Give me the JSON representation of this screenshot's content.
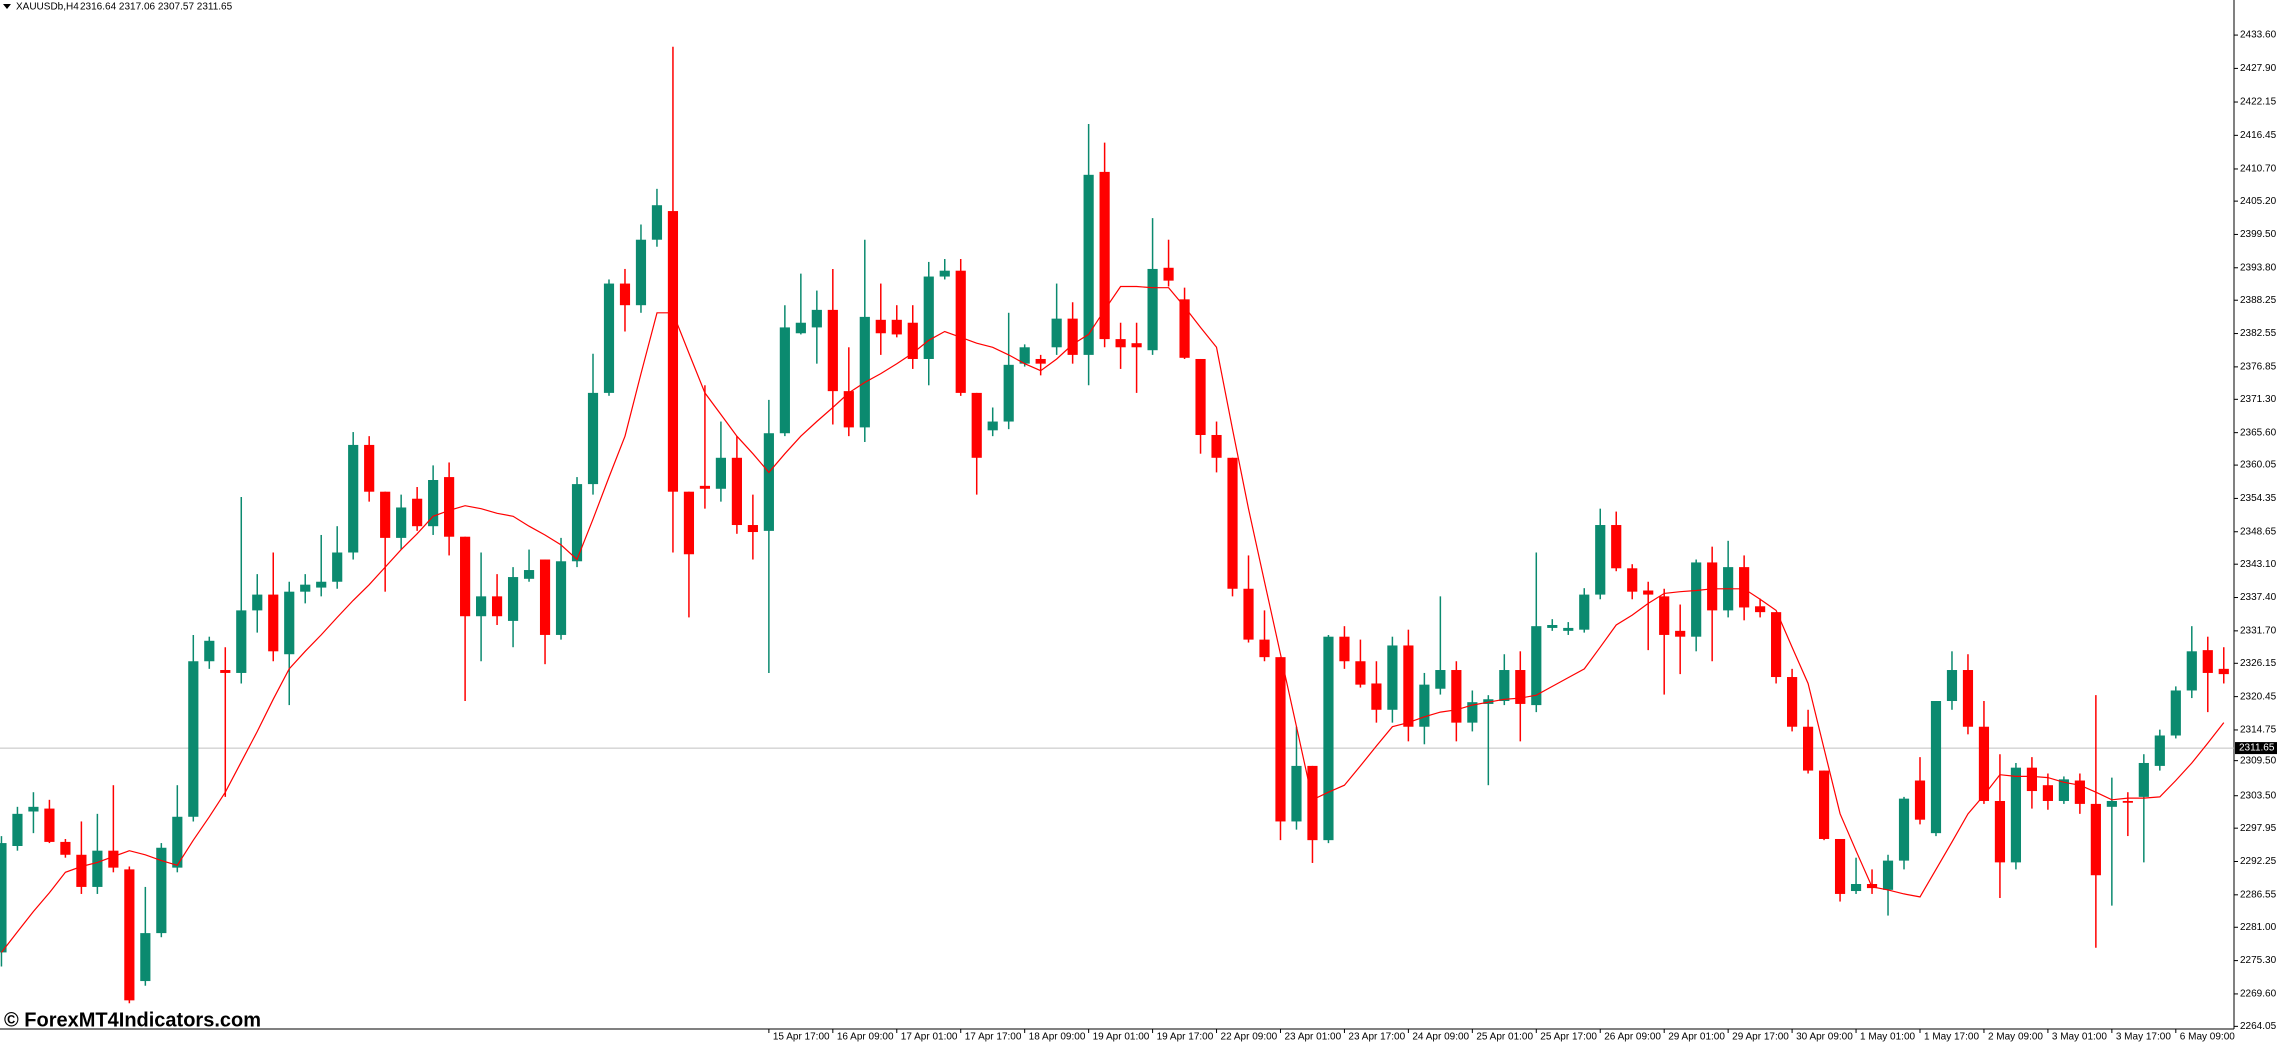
{
  "chart_data": {
    "type": "candlestick",
    "title": "XAUUSDb,H4",
    "subtitle": "2316.64 2317.06 2307.57 2311.65",
    "up_color": "#0b8a6f",
    "down_color": "#ff0000",
    "categories": [
      null,
      null,
      null,
      null,
      null,
      null,
      null,
      null,
      null,
      null,
      null,
      null,
      null,
      null,
      null,
      null,
      null,
      null,
      null,
      null,
      null,
      null,
      null,
      null,
      null,
      null,
      null,
      null,
      null,
      null,
      null,
      null,
      null,
      null,
      null,
      null,
      null,
      null,
      null,
      null,
      null,
      null,
      null,
      null,
      null,
      null,
      null,
      null,
      "15 Apr 17:00",
      null,
      null,
      null,
      "16 Apr 09:00",
      null,
      null,
      null,
      "17 Apr 01:00",
      null,
      null,
      null,
      "17 Apr 17:00",
      null,
      null,
      null,
      "18 Apr 09:00",
      null,
      null,
      null,
      "19 Apr 01:00",
      null,
      null,
      null,
      "19 Apr 17:00",
      null,
      null,
      null,
      "22 Apr 09:00",
      null,
      null,
      null,
      "23 Apr 01:00",
      null,
      null,
      null,
      "23 Apr 17:00",
      null,
      null,
      null,
      "24 Apr 09:00",
      null,
      null,
      null,
      "25 Apr 01:00",
      null,
      null,
      null,
      "25 Apr 17:00",
      null,
      null,
      null,
      "26 Apr 09:00",
      null,
      null,
      null,
      "29 Apr 01:00",
      null,
      null,
      null,
      "29 Apr 17:00",
      null,
      null,
      null,
      "30 Apr 09:00",
      null,
      null,
      null,
      "1 May 01:00",
      null,
      null,
      null,
      "1 May 17:00",
      null,
      null,
      null,
      "2 May 09:00",
      null,
      null,
      null,
      "3 May 01:00",
      null,
      null,
      null,
      "3 May 17:00",
      null,
      null,
      null,
      "6 May 09:00",
      null,
      null,
      null
    ],
    "open": [
      2276.7,
      2294.9,
      2300.8,
      2301.3,
      2295.6,
      2293.4,
      2287.9,
      2294.1,
      2290.9,
      2271.8,
      2280.0,
      2291.2,
      2299.9,
      2326.5,
      2325.0,
      2324.5,
      2335.2,
      2337.9,
      2327.7,
      2338.4,
      2339.1,
      2340.1,
      2345.1,
      2363.5,
      2355.5,
      2347.6,
      2354.3,
      2349.6,
      2358.0,
      2347.8,
      2334.2,
      2337.6,
      2333.4,
      2340.6,
      2343.9,
      2331.0,
      2343.6,
      2356.8,
      2372.4,
      2391.1,
      2387.4,
      2398.6,
      2403.5,
      2355.5,
      2356.5,
      2356.0,
      2361.3,
      2349.8,
      2348.8,
      2365.5,
      2382.6,
      2383.6,
      2386.6,
      2372.7,
      2366.5,
      2384.9,
      2384.9,
      2384.4,
      2378.2,
      2392.3,
      2393.3,
      2372.4,
      2366.0,
      2367.5,
      2377.4,
      2378.2,
      2380.2,
      2385.1,
      2378.9,
      2410.2,
      2381.6,
      2380.9,
      2379.7,
      2393.8,
      2388.4,
      2378.2,
      2365.2,
      2361.3,
      2338.9,
      2330.2,
      2327.2,
      2299.1,
      2308.6,
      2295.9,
      2330.7,
      2326.5,
      2322.7,
      2318.2,
      2329.2,
      2315.3,
      2321.8,
      2325.0,
      2316.0,
      2319.2,
      2319.7,
      2325.0,
      2319.0,
      2332.2,
      2331.7,
      2331.9,
      2337.9,
      2349.8,
      2342.4,
      2338.6,
      2337.6,
      2331.7,
      2330.7,
      2343.4,
      2335.2,
      2342.6,
      2335.9,
      2334.9,
      2323.8,
      2315.3,
      2307.8,
      2296.1,
      2287.2,
      2288.4,
      2287.4,
      2292.4,
      2306.1,
      2297.1,
      2319.7,
      2325.0,
      2315.3,
      2302.6,
      2292.1,
      2308.3,
      2305.3,
      2302.6,
      2306.1,
      2302.1,
      2301.6,
      2302.6,
      2303.3,
      2308.6,
      2313.8,
      2321.5,
      2328.4,
      2325.2
    ],
    "high": [
      2296.6,
      2301.6,
      2304.1,
      2302.8,
      2296.1,
      2299.1,
      2300.4,
      2305.3,
      2291.4,
      2287.9,
      2295.4,
      2305.3,
      2331.0,
      2330.7,
      2328.9,
      2354.6,
      2341.4,
      2345.1,
      2340.1,
      2341.4,
      2348.1,
      2349.6,
      2365.7,
      2365.0,
      2355.5,
      2355.0,
      2356.3,
      2360.0,
      2360.5,
      2347.8,
      2345.1,
      2341.4,
      2342.6,
      2345.6,
      2343.9,
      2347.6,
      2358.0,
      2379.1,
      2391.8,
      2393.6,
      2401.2,
      2407.3,
      2431.6,
      2355.5,
      2373.7,
      2367.5,
      2365.0,
      2355.0,
      2371.2,
      2387.4,
      2392.8,
      2389.9,
      2393.6,
      2380.2,
      2398.6,
      2391.1,
      2387.4,
      2387.4,
      2394.8,
      2395.3,
      2395.3,
      2372.4,
      2369.9,
      2386.1,
      2380.7,
      2378.9,
      2391.1,
      2387.9,
      2418.4,
      2415.2,
      2384.4,
      2384.4,
      2402.3,
      2398.6,
      2390.4,
      2378.2,
      2367.5,
      2361.3,
      2344.6,
      2335.2,
      2327.2,
      2315.3,
      2308.6,
      2331.0,
      2332.5,
      2330.2,
      2326.5,
      2330.7,
      2331.9,
      2324.5,
      2337.6,
      2326.5,
      2321.5,
      2320.7,
      2327.7,
      2328.2,
      2345.1,
      2333.7,
      2333.2,
      2339.0,
      2352.6,
      2352.1,
      2343.1,
      2340.1,
      2338.9,
      2336.2,
      2343.9,
      2346.1,
      2347.1,
      2344.6,
      2337.2,
      2334.9,
      2325.2,
      2318.2,
      2307.8,
      2296.1,
      2292.9,
      2290.9,
      2293.4,
      2303.3,
      2310.1,
      2319.7,
      2328.2,
      2327.7,
      2319.7,
      2310.6,
      2309.1,
      2310.1,
      2307.3,
      2306.8,
      2307.3,
      2320.7,
      2306.6,
      2304.1,
      2310.6,
      2314.8,
      2322.2,
      2332.5,
      2330.7,
      2328.9
    ],
    "low": [
      2274.3,
      2294.1,
      2297.1,
      2295.4,
      2292.9,
      2286.7,
      2286.7,
      2290.4,
      2268.0,
      2271.0,
      2279.3,
      2290.4,
      2299.1,
      2325.2,
      2303.3,
      2322.7,
      2331.4,
      2326.5,
      2319.0,
      2336.4,
      2337.6,
      2338.9,
      2343.9,
      2353.8,
      2338.4,
      2345.6,
      2348.8,
      2348.1,
      2344.6,
      2319.7,
      2326.5,
      2332.7,
      2328.9,
      2340.1,
      2326.0,
      2330.2,
      2342.6,
      2355.0,
      2371.9,
      2382.9,
      2386.1,
      2397.4,
      2345.1,
      2334.0,
      2352.6,
      2353.8,
      2348.3,
      2343.9,
      2324.5,
      2365.0,
      2382.4,
      2377.4,
      2367.0,
      2365.0,
      2364.0,
      2378.9,
      2381.9,
      2376.5,
      2373.7,
      2391.8,
      2371.9,
      2355.0,
      2365.0,
      2366.2,
      2376.9,
      2375.4,
      2378.9,
      2377.4,
      2373.7,
      2380.2,
      2376.5,
      2372.4,
      2378.9,
      2390.6,
      2378.2,
      2362.0,
      2358.8,
      2337.6,
      2329.7,
      2326.5,
      2295.9,
      2297.7,
      2292.0,
      2295.4,
      2325.2,
      2322.0,
      2316.0,
      2316.0,
      2312.8,
      2312.3,
      2320.8,
      2312.8,
      2314.5,
      2305.3,
      2319.0,
      2312.8,
      2317.8,
      2331.7,
      2331.0,
      2331.4,
      2337.1,
      2341.9,
      2337.1,
      2328.4,
      2320.8,
      2324.3,
      2328.2,
      2326.5,
      2334.0,
      2333.5,
      2334.0,
      2322.7,
      2314.5,
      2307.3,
      2295.9,
      2285.4,
      2286.7,
      2286.7,
      2283.0,
      2290.9,
      2298.6,
      2296.6,
      2318.2,
      2314.0,
      2302.1,
      2286.0,
      2290.9,
      2301.3,
      2301.1,
      2302.1,
      2300.4,
      2277.5,
      2284.7,
      2296.6,
      2292.1,
      2307.8,
      2313.3,
      2320.2,
      2317.8,
      2322.7
    ],
    "close": [
      2295.4,
      2300.4,
      2301.6,
      2295.6,
      2293.4,
      2287.9,
      2294.1,
      2291.2,
      2268.5,
      2280.0,
      2294.6,
      2299.9,
      2326.5,
      2330.0,
      2324.5,
      2335.2,
      2337.9,
      2328.2,
      2338.4,
      2339.6,
      2340.1,
      2345.1,
      2363.5,
      2355.5,
      2347.6,
      2352.8,
      2349.6,
      2357.5,
      2347.8,
      2334.2,
      2337.6,
      2334.2,
      2340.9,
      2342.1,
      2331.0,
      2343.6,
      2356.8,
      2372.4,
      2391.1,
      2387.4,
      2398.6,
      2404.5,
      2355.5,
      2344.8,
      2356.0,
      2361.3,
      2349.8,
      2348.6,
      2365.5,
      2383.6,
      2384.4,
      2386.6,
      2372.7,
      2366.5,
      2385.4,
      2382.6,
      2382.4,
      2378.2,
      2392.3,
      2393.3,
      2372.4,
      2361.3,
      2367.5,
      2377.2,
      2380.2,
      2377.4,
      2385.1,
      2378.9,
      2409.7,
      2381.6,
      2380.2,
      2380.2,
      2393.6,
      2391.6,
      2378.4,
      2365.2,
      2361.3,
      2338.9,
      2330.2,
      2327.2,
      2299.1,
      2308.6,
      2295.9,
      2330.7,
      2326.5,
      2322.5,
      2318.2,
      2329.2,
      2315.3,
      2322.5,
      2325.0,
      2316.0,
      2319.5,
      2320.0,
      2325.0,
      2319.2,
      2332.5,
      2332.7,
      2332.2,
      2337.9,
      2349.8,
      2342.4,
      2338.4,
      2337.9,
      2331.0,
      2330.7,
      2343.4,
      2335.2,
      2342.6,
      2335.7,
      2334.9,
      2323.8,
      2315.3,
      2307.8,
      2296.1,
      2286.7,
      2288.4,
      2287.7,
      2292.4,
      2303.0,
      2299.4,
      2319.7,
      2325.0,
      2315.3,
      2302.6,
      2292.1,
      2308.3,
      2304.3,
      2302.6,
      2306.3,
      2302.1,
      2289.9,
      2302.6,
      2302.3,
      2309.1,
      2313.8,
      2321.5,
      2328.2,
      2324.5,
      2324.3
    ],
    "ma": {
      "color": "#ff0000",
      "values": [
        2276.7,
        2280.2,
        2283.7,
        2286.9,
        2290.4,
        2291.4,
        2292.1,
        2293.1,
        2294.1,
        2293.4,
        2292.4,
        2291.6,
        2295.9,
        2299.9,
        2304.1,
        2309.3,
        2314.5,
        2320.0,
        2325.2,
        2328.2,
        2331.0,
        2334.0,
        2336.9,
        2339.6,
        2342.6,
        2345.6,
        2348.3,
        2351.3,
        2352.3,
        2353.1,
        2352.6,
        2351.8,
        2351.3,
        2349.6,
        2348.1,
        2346.4,
        2343.9,
        2350.8,
        2358.0,
        2365.0,
        2375.7,
        2386.1,
        2386.1,
        2379.2,
        2372.4,
        2368.7,
        2365.0,
        2362.0,
        2358.8,
        2362.0,
        2365.0,
        2367.5,
        2369.9,
        2372.4,
        2374.2,
        2375.7,
        2377.4,
        2379.2,
        2381.4,
        2382.9,
        2381.9,
        2380.9,
        2380.2,
        2378.9,
        2377.4,
        2376.2,
        2378.2,
        2380.7,
        2382.4,
        2386.6,
        2390.6,
        2390.6,
        2390.4,
        2390.4,
        2387.1,
        2383.6,
        2380.2,
        2366.2,
        2352.6,
        2340.1,
        2327.7,
        2315.3,
        2302.8,
        2304.1,
        2305.3,
        2308.6,
        2312.0,
        2315.3,
        2316.0,
        2317.0,
        2317.8,
        2318.2,
        2319.0,
        2319.5,
        2320.0,
        2320.2,
        2320.7,
        2322.2,
        2323.7,
        2325.2,
        2328.9,
        2332.7,
        2334.4,
        2336.4,
        2338.1,
        2338.4,
        2338.6,
        2338.9,
        2338.9,
        2338.9,
        2337.1,
        2335.2,
        2328.9,
        2322.7,
        2311.5,
        2300.4,
        2294.1,
        2287.9,
        2287.4,
        2286.7,
        2286.2,
        2290.9,
        2295.6,
        2300.4,
        2303.6,
        2307.1,
        2306.8,
        2306.8,
        2306.6,
        2305.8,
        2305.3,
        2304.1,
        2302.8,
        2303.1,
        2303.1,
        2303.3,
        2306.1,
        2309.1,
        2312.5,
        2316.0
      ]
    },
    "price_line": 2311.65,
    "price_line_color": "#c0c0c0",
    "ylim": [
      2263.6,
      2439.6
    ],
    "yticks": [
      {
        "value": 2433.6,
        "label": "2433.60"
      },
      {
        "value": 2427.9,
        "label": "2427.90"
      },
      2422.15,
      2416.45,
      {
        "value": 2410.7,
        "label": "2410.70"
      },
      {
        "value": 2405.2,
        "label": "2405.20"
      },
      {
        "value": 2399.5,
        "label": "2399.50"
      },
      {
        "value": 2393.8,
        "label": "2393.80"
      },
      2388.25,
      2382.55,
      2376.85,
      {
        "value": 2371.3,
        "label": "2371.30"
      },
      {
        "value": 2365.6,
        "label": "2365.60"
      },
      2360.05,
      2354.35,
      2348.65,
      {
        "value": 2343.1,
        "label": "2343.10"
      },
      {
        "value": 2337.4,
        "label": "2337.40"
      },
      {
        "value": 2331.7,
        "label": "2331.70"
      },
      2326.15,
      2320.45,
      2314.75,
      {
        "value": 2309.5,
        "label": "2309.50"
      },
      {
        "value": 2303.5,
        "label": "2303.50"
      },
      2297.95,
      2292.25,
      2286.55,
      {
        "value": 2281,
        "label": "2281.00"
      },
      {
        "value": 2275.3,
        "label": "2275.30"
      },
      {
        "value": 2269.6,
        "label": "2269.60"
      },
      2264.05
    ],
    "grid": false
  },
  "watermark": "© ForexMT4Indicators.com"
}
